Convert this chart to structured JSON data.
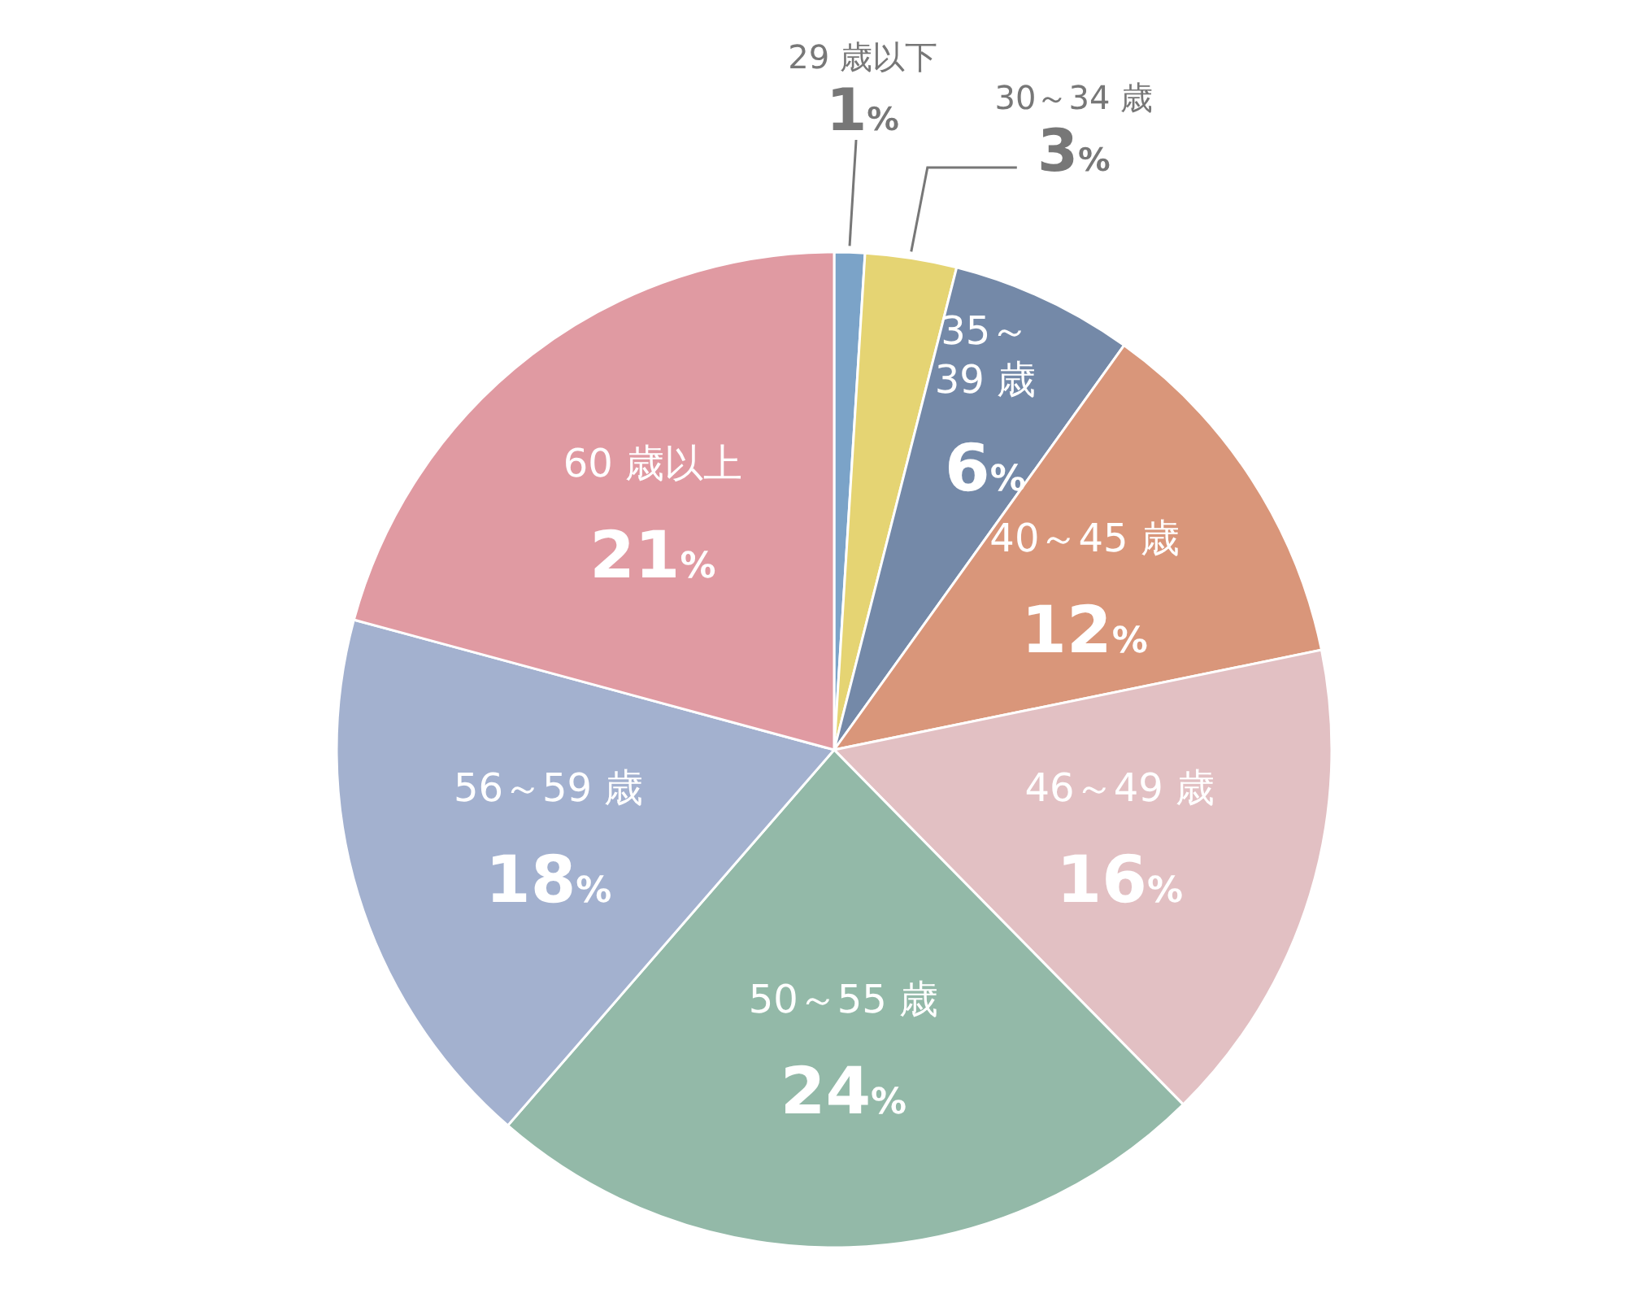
{
  "chart_data": {
    "type": "pie",
    "categories": [
      "29 歳以下",
      "30～34 歳",
      "35～39 歳",
      "40～45 歳",
      "46～49 歳",
      "50～55 歳",
      "56～59 歳",
      "60 歳以上"
    ],
    "values": [
      1,
      3,
      6,
      12,
      16,
      24,
      18,
      21
    ],
    "value_labels": [
      "1%",
      "3%",
      "6%",
      "12%",
      "16%",
      "24%",
      "18%",
      "21%"
    ],
    "colors": [
      "#7ba3c8",
      "#e5d473",
      "#7489a8",
      "#d9967a",
      "#e2c0c3",
      "#93b9a8",
      "#a3b1cf",
      "#e09aa2"
    ]
  }
}
